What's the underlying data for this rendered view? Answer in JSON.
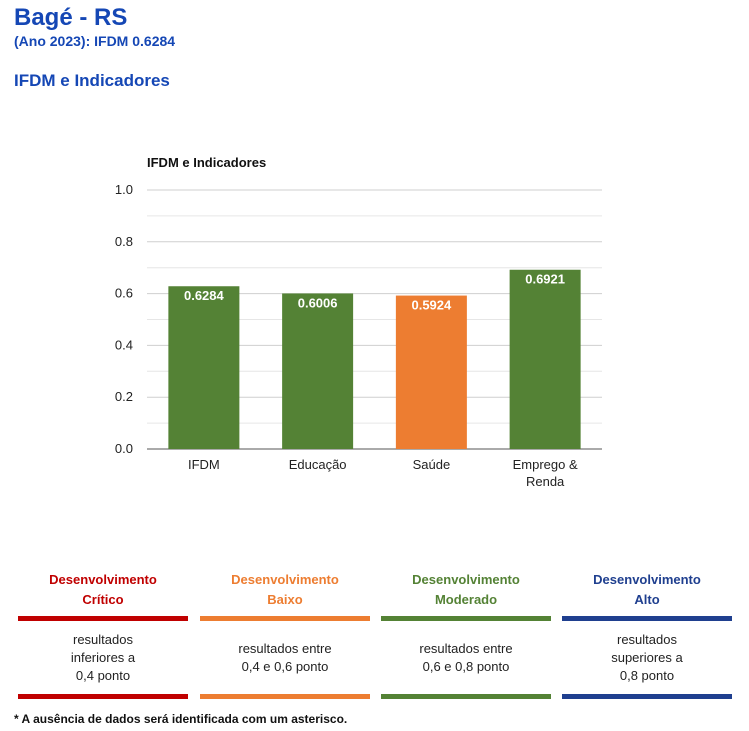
{
  "header": {
    "title": "Bagé - RS",
    "subtitle": "(Ano 2023): IFDM 0.6284",
    "section": "IFDM e Indicadores"
  },
  "chart_data": {
    "type": "bar",
    "title": "IFDM e Indicadores",
    "categories": [
      "IFDM",
      "Educação",
      "Saúde",
      "Emprego & Renda"
    ],
    "category_lines": [
      [
        "IFDM"
      ],
      [
        "Educação"
      ],
      [
        "Saúde"
      ],
      [
        "Emprego &",
        "Renda"
      ]
    ],
    "values": [
      0.6284,
      0.6006,
      0.5924,
      0.6921
    ],
    "value_labels": [
      "0.6284",
      "0.6006",
      "0.5924",
      "0.6921"
    ],
    "colors": [
      "#548235",
      "#548235",
      "#ed7d31",
      "#548235"
    ],
    "ylim": [
      0,
      1
    ],
    "yticks": [
      "0.0",
      "0.2",
      "0.4",
      "0.6",
      "0.8",
      "1.0"
    ],
    "grid": true,
    "xlabel": "",
    "ylabel": ""
  },
  "legend": [
    {
      "head1": "Desenvolvimento",
      "head2": "Crítico",
      "color": "#c00000",
      "lines": [
        "resultados",
        "inferiores a",
        "0,4 ponto"
      ]
    },
    {
      "head1": "Desenvolvimento",
      "head2": "Baixo",
      "color": "#ed7d31",
      "lines": [
        "resultados entre",
        "0,4 e 0,6 ponto"
      ]
    },
    {
      "head1": "Desenvolvimento",
      "head2": "Moderado",
      "color": "#548235",
      "lines": [
        "resultados entre",
        "0,6 e 0,8 ponto"
      ]
    },
    {
      "head1": "Desenvolvimento",
      "head2": "Alto",
      "color": "#1f3f8f",
      "lines": [
        "resultados",
        "superiores a",
        "0,8 ponto"
      ]
    }
  ],
  "footnote": "* A ausência de dados será identificada com um asterisco."
}
